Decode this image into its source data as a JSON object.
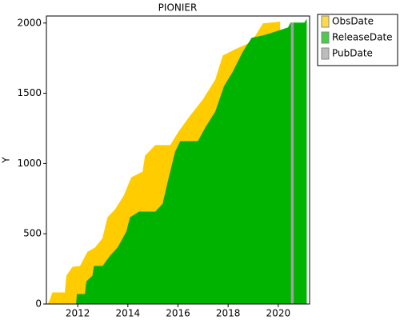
{
  "chart_data": {
    "type": "area",
    "title": "PIONIER",
    "ylabel": "Y",
    "xlim": [
      2010.75,
      2021.25
    ],
    "xticks": [
      2012,
      2014,
      2016,
      2018,
      2020
    ],
    "ylim": [
      0,
      2050
    ],
    "yticks": [
      0,
      500,
      1000,
      1500,
      2000
    ],
    "series": [
      {
        "name": "ObsDate",
        "color": "#ffcc00",
        "x": [
          2010.82,
          2010.9,
          2011.0,
          2011.5,
          2011.56,
          2011.8,
          2012.1,
          2012.4,
          2012.7,
          2013.0,
          2013.2,
          2013.5,
          2013.85,
          2014.15,
          2014.6,
          2014.7,
          2015.1,
          2015.7,
          2016.03,
          2016.5,
          2017.0,
          2017.5,
          2017.8,
          2018.3,
          2018.8,
          2019.1,
          2019.4,
          2020.06
        ],
        "values": [
          0,
          28,
          80,
          80,
          200,
          262,
          268,
          370,
          400,
          467,
          615,
          672,
          770,
          900,
          940,
          1054,
          1128,
          1128,
          1225,
          1340,
          1453,
          1596,
          1767,
          1812,
          1852,
          1909,
          1995,
          2006
        ]
      },
      {
        "name": "ReleaseDate",
        "color": "#00b300",
        "x": [
          2011.95,
          2011.98,
          2012.3,
          2012.36,
          2012.6,
          2012.66,
          2013.0,
          2013.3,
          2013.6,
          2013.95,
          2014.1,
          2014.45,
          2015.1,
          2015.4,
          2015.6,
          2015.9,
          2016.1,
          2016.8,
          2017.1,
          2017.5,
          2017.85,
          2018.2,
          2018.6,
          2018.95,
          2019.4,
          2019.9,
          2020.4,
          2020.5,
          2021.05,
          2021.12
        ],
        "values": [
          0,
          68,
          68,
          160,
          200,
          268,
          268,
          342,
          400,
          513,
          615,
          655,
          655,
          712,
          866,
          1083,
          1157,
          1157,
          1254,
          1368,
          1550,
          1653,
          1795,
          1892,
          1909,
          1937,
          1966,
          2000,
          2000,
          2020
        ]
      },
      {
        "name": "PubDate",
        "color": "#a0a0a0",
        "x": [
          2020.52,
          2020.6
        ],
        "values": [
          2000,
          2000
        ]
      }
    ]
  }
}
